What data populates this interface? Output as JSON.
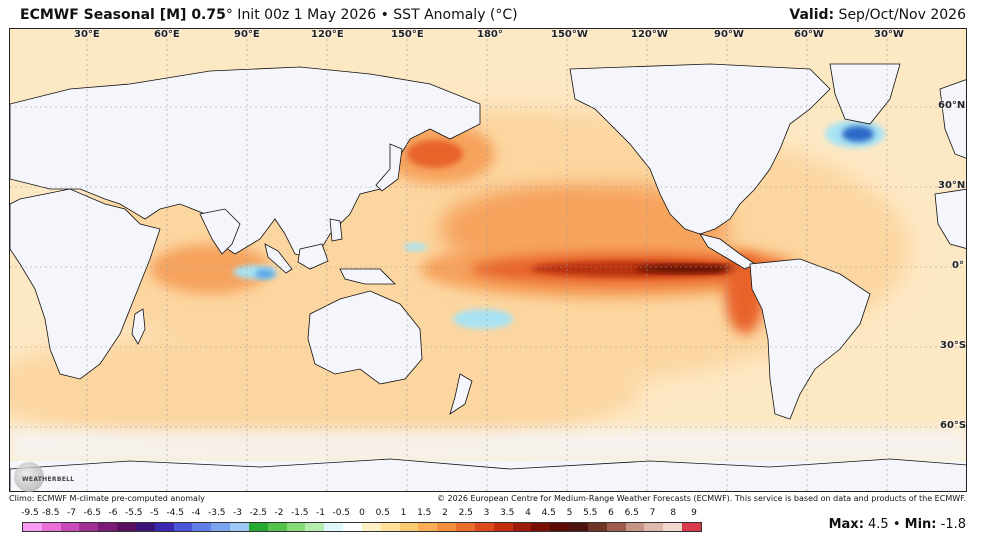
{
  "header": {
    "title_bold": "ECMWF Seasonal [M] 0.75",
    "title_rest": "° Init 00z 1 May 2026 • SST Anomaly (°C)",
    "valid_label": "Valid:",
    "valid_value": " Sep/Oct/Nov 2026"
  },
  "map": {
    "lon_labels": [
      "30°E",
      "60°E",
      "90°E",
      "120°E",
      "150°E",
      "180°",
      "150°W",
      "120°W",
      "90°W",
      "60°W",
      "30°W"
    ],
    "lat_labels": [
      "60°N",
      "30°N",
      "0°",
      "30°S",
      "60°S"
    ],
    "colors": {
      "ocean_base": "#fde8c4",
      "land": "#f4f6fb",
      "warm_light": "#fcd6a0",
      "warm_mid": "#f6a35d",
      "warm_strong": "#e8642b",
      "warm_deep": "#b8300f",
      "warm_max": "#5e0f05",
      "cool_light": "#a9e3f3",
      "cool_mid": "#5aa7e6",
      "cool_strong": "#2c67c7",
      "coast": "#111111"
    }
  },
  "footer": {
    "climo_note": "Climo: ECMWF M-climate pre-computed anomaly",
    "copyright": "© 2026 European Centre for Medium-Range Weather Forecasts (ECMWF). This service is based on data and products of the ECMWF."
  },
  "logo": {
    "text": "WEATHERBELL"
  },
  "colorbar": {
    "labels": [
      "-9.5",
      "-8.5",
      "-7",
      "-6.5",
      "-6",
      "-5.5",
      "-5",
      "-4.5",
      "-4",
      "-3.5",
      "-3",
      "-2.5",
      "-2",
      "-1.5",
      "-1",
      "-0.5",
      "0",
      "0.5",
      "1",
      "1.5",
      "2",
      "2.5",
      "3",
      "3.5",
      "4",
      "4.5",
      "5",
      "5.5",
      "6",
      "6.5",
      "7",
      "8",
      "9"
    ],
    "colors": [
      "#f79cf2",
      "#e870d8",
      "#c94bb8",
      "#a03095",
      "#7a1b76",
      "#5b0f5e",
      "#3a1478",
      "#3b2ab0",
      "#4b54d8",
      "#6080e8",
      "#7aa6f0",
      "#9bc8f5",
      "#26a832",
      "#52c24a",
      "#86d977",
      "#b7ecb0",
      "#e2f7f9",
      "#ffffff",
      "#ffefc4",
      "#ffe09a",
      "#fcc973",
      "#f9ad56",
      "#f38f3f",
      "#ea6d2b",
      "#db4b1c",
      "#c12e10",
      "#9c1a08",
      "#7a0f05",
      "#5b0b06",
      "#4a1410",
      "#6e3526",
      "#9c5d4a",
      "#c79585",
      "#e0b9ae",
      "#f2d7cf",
      "#d9394c"
    ],
    "max_label": "Max:",
    "max_value": " 4.5",
    "separator": " • ",
    "min_label": "Min:",
    "min_value": " -1.8"
  }
}
